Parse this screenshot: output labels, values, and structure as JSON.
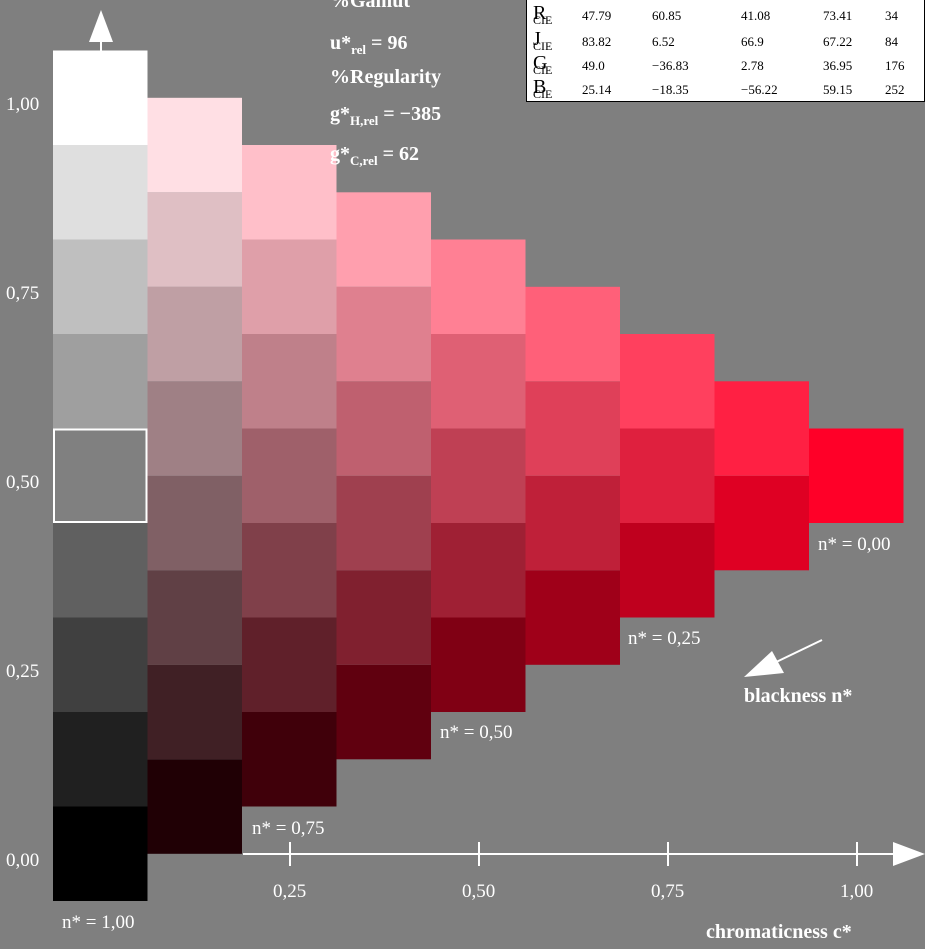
{
  "table": {
    "rows": [
      {
        "name": "R",
        "sub": "CIE",
        "values": [
          "47.79",
          "60.85",
          "41.08",
          "73.41",
          "34"
        ]
      },
      {
        "name": "J",
        "sub": "CIE",
        "values": [
          "83.82",
          "6.52",
          "66.9",
          "67.22",
          "84"
        ]
      },
      {
        "name": "G",
        "sub": "CIE",
        "values": [
          "49.0",
          "−36.83",
          "2.78",
          "36.95",
          "176"
        ]
      },
      {
        "name": "B",
        "sub": "CIE",
        "values": [
          "25.14",
          "−18.35",
          "−56.22",
          "59.15",
          "252"
        ]
      }
    ]
  },
  "metrics": {
    "gamut": "%Gamut",
    "u_label": "u*",
    "u_sub": "rel",
    "u_value": " = 96",
    "regularity": "%Regularity",
    "gh_label": "g*",
    "gh_sub": "H,rel",
    "gh_value": " = −385",
    "gc_label": "g*",
    "gc_sub": "C,rel",
    "gc_value": " = 62"
  },
  "axes": {
    "y_ticks": [
      "0,00",
      "0,25",
      "0,50",
      "0,75",
      "1,00"
    ],
    "x_ticks": [
      "0,25",
      "0,50",
      "0,75",
      "1,00"
    ],
    "x_title": "chromaticness c*",
    "blackness_title": "blackness n*"
  },
  "n_labels": [
    "n* = 0,00",
    "n* = 0,25",
    "n* = 0,50",
    "n* = 0,75",
    "n* = 1,00"
  ],
  "colors": {
    "background": "#7f7f7f",
    "hue": "#ff0028",
    "white": "#ffffff",
    "black": "#000000",
    "highlight_outline": "#ffffff"
  },
  "grid": {
    "steps": 8,
    "highlight_cell": {
      "column": 0,
      "level": 4
    }
  }
}
